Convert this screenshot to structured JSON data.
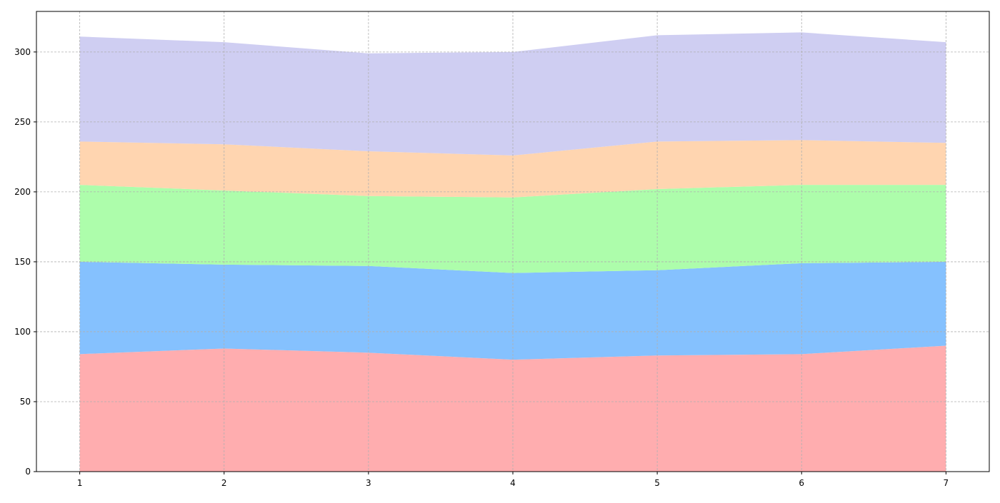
{
  "chart_data": {
    "type": "area",
    "stacked": true,
    "title": "",
    "xlabel": "",
    "ylabel": "",
    "x": [
      1,
      2,
      3,
      4,
      5,
      6,
      7
    ],
    "xlim": [
      0.7,
      7.3
    ],
    "ylim": [
      0,
      329
    ],
    "xticks": [
      1,
      2,
      3,
      4,
      5,
      6,
      7
    ],
    "yticks": [
      0,
      50,
      100,
      150,
      200,
      250,
      300
    ],
    "grid": true,
    "series": [
      {
        "values": [
          84,
          88,
          85,
          80,
          83,
          84,
          90
        ],
        "color": "#ffadaf"
      },
      {
        "values": [
          66,
          60,
          62,
          62,
          61,
          65,
          60
        ],
        "color": "#85c1fe"
      },
      {
        "values": [
          55,
          53,
          50,
          54,
          58,
          56,
          55
        ],
        "color": "#adfdab"
      },
      {
        "values": [
          31,
          33,
          32,
          30,
          34,
          32,
          30
        ],
        "color": "#ffd5b0"
      },
      {
        "values": [
          75,
          73,
          70,
          74,
          76,
          77,
          72
        ],
        "color": "#cfcef2"
      }
    ]
  }
}
